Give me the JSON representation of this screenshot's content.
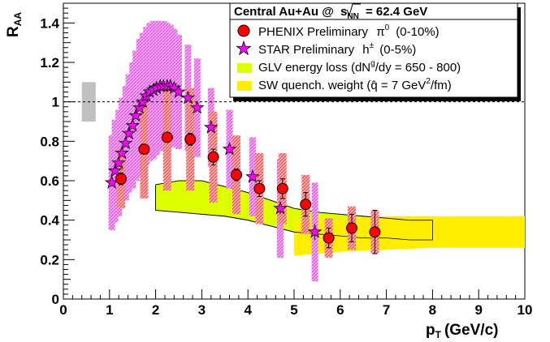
{
  "chart_data": {
    "type": "scatter",
    "xlabel": "p",
    "xlabel_sub": "T",
    "xlabel_unit": "(GeV/c)",
    "ylabel": "R",
    "ylabel_sub": "AA",
    "xlim": [
      0,
      10
    ],
    "ylim": [
      0,
      1.5
    ],
    "x_ticks": [
      0,
      1,
      2,
      3,
      4,
      5,
      6,
      7,
      8,
      9,
      10
    ],
    "y_ticks": [
      0,
      0.2,
      0.4,
      0.6,
      0.8,
      1,
      1.2,
      1.4
    ],
    "x_tick_labels": [
      "0",
      "1",
      "2",
      "3",
      "4",
      "5",
      "6",
      "7",
      "8",
      "9",
      "10"
    ],
    "y_tick_labels": [
      "0",
      "0.2",
      "0.4",
      "0.6",
      "0.8",
      "1",
      "1.2",
      "1.4"
    ],
    "reference_line_y": 1,
    "normalization_box": {
      "x": [
        0.4,
        0.7
      ],
      "y": [
        0.9,
        1.1
      ]
    },
    "legend": {
      "title_pre": "Central Au+Au @",
      "title_s": "s",
      "title_sub": "NN",
      "title_post": "= 62.4 GeV",
      "entries": [
        {
          "pre": "PHENIX Preliminary",
          "sym": "π",
          "sup": "0",
          "post": "(0-10%)"
        },
        {
          "pre": "STAR Preliminary",
          "sym": "h",
          "sup": "±",
          "post": "(0-5%)"
        },
        {
          "pre": "GLV energy loss (dN",
          "sup": "g",
          "post": "/dy = 650 - 800)"
        },
        {
          "pre": "SW quench. weight (",
          "sym": "q̂",
          "post": " = 7 GeV",
          "sup2": "2",
          "post2": "/fm)"
        }
      ]
    },
    "series": [
      {
        "name": "PHENIX Preliminary π0 (0-10%)",
        "color": "#ff0000",
        "marker": "circle",
        "points": [
          {
            "x": 1.25,
            "y": 0.61,
            "err": 0.03,
            "sys": 0.15
          },
          {
            "x": 1.75,
            "y": 0.76,
            "err": 0.02,
            "sys": 0.25
          },
          {
            "x": 2.25,
            "y": 0.82,
            "err": 0.02,
            "sys": 0.27
          },
          {
            "x": 2.75,
            "y": 0.81,
            "err": 0.03,
            "sys": 0.26
          },
          {
            "x": 3.25,
            "y": 0.72,
            "err": 0.04,
            "sys": 0.23
          },
          {
            "x": 3.75,
            "y": 0.63,
            "err": 0.03,
            "sys": 0.2
          },
          {
            "x": 4.25,
            "y": 0.56,
            "err": 0.04,
            "sys": 0.18
          },
          {
            "x": 4.75,
            "y": 0.56,
            "err": 0.05,
            "sys": 0.18
          },
          {
            "x": 5.25,
            "y": 0.48,
            "err": 0.06,
            "sys": 0.15
          },
          {
            "x": 5.75,
            "y": 0.31,
            "err": 0.05,
            "sys": 0.1
          },
          {
            "x": 6.25,
            "y": 0.36,
            "err": 0.07,
            "sys": 0.11
          },
          {
            "x": 6.75,
            "y": 0.34,
            "err": 0.11,
            "sys": 0.11
          }
        ]
      },
      {
        "name": "STAR Preliminary h± (0-5%)",
        "color": "#ff00ff",
        "marker": "star",
        "points": [
          {
            "x": 1.05,
            "y": 0.59,
            "err": 0.01,
            "sys": 0.24
          },
          {
            "x": 1.12,
            "y": 0.65,
            "err": 0.01,
            "sys": 0.26
          },
          {
            "x": 1.2,
            "y": 0.69,
            "err": 0.01,
            "sys": 0.27
          },
          {
            "x": 1.27,
            "y": 0.74,
            "err": 0.01,
            "sys": 0.28
          },
          {
            "x": 1.35,
            "y": 0.79,
            "err": 0.01,
            "sys": 0.29
          },
          {
            "x": 1.42,
            "y": 0.84,
            "err": 0.01,
            "sys": 0.3
          },
          {
            "x": 1.5,
            "y": 0.88,
            "err": 0.01,
            "sys": 0.32
          },
          {
            "x": 1.57,
            "y": 0.93,
            "err": 0.01,
            "sys": 0.33
          },
          {
            "x": 1.65,
            "y": 0.97,
            "err": 0.01,
            "sys": 0.35
          },
          {
            "x": 1.72,
            "y": 1.0,
            "err": 0.01,
            "sys": 0.35
          },
          {
            "x": 1.8,
            "y": 1.03,
            "err": 0.01,
            "sys": 0.35
          },
          {
            "x": 1.87,
            "y": 1.05,
            "err": 0.01,
            "sys": 0.35
          },
          {
            "x": 1.95,
            "y": 1.06,
            "err": 0.01,
            "sys": 0.35
          },
          {
            "x": 2.02,
            "y": 1.07,
            "err": 0.01,
            "sys": 0.34
          },
          {
            "x": 2.1,
            "y": 1.08,
            "err": 0.01,
            "sys": 0.33
          },
          {
            "x": 2.17,
            "y": 1.08,
            "err": 0.01,
            "sys": 0.33
          },
          {
            "x": 2.25,
            "y": 1.08,
            "err": 0.01,
            "sys": 0.32
          },
          {
            "x": 2.32,
            "y": 1.08,
            "err": 0.01,
            "sys": 0.31
          },
          {
            "x": 2.4,
            "y": 1.07,
            "err": 0.01,
            "sys": 0.3
          },
          {
            "x": 2.5,
            "y": 1.05,
            "err": 0.01,
            "sys": 0.29
          },
          {
            "x": 2.7,
            "y": 1.02,
            "err": 0.01,
            "sys": 0.27
          },
          {
            "x": 2.9,
            "y": 0.97,
            "err": 0.01,
            "sys": 0.25
          },
          {
            "x": 3.2,
            "y": 0.87,
            "err": 0.01,
            "sys": 0.2
          },
          {
            "x": 3.6,
            "y": 0.76,
            "err": 0.02,
            "sys": 0.2
          },
          {
            "x": 4.1,
            "y": 0.62,
            "err": 0.02,
            "sys": 0.2
          },
          {
            "x": 4.7,
            "y": 0.46,
            "err": 0.03,
            "sys": 0.25
          },
          {
            "x": 5.45,
            "y": 0.34,
            "err": 0.04,
            "sys": 0.25
          }
        ]
      }
    ],
    "bands": [
      {
        "name": "GLV energy loss",
        "color": "#ddff00",
        "x": [
          2.0,
          2.5,
          3.0,
          3.5,
          4.0,
          4.5,
          5.0,
          5.5,
          6.0,
          6.5,
          7.0,
          7.5,
          8.0
        ],
        "upper": [
          0.58,
          0.6,
          0.6,
          0.57,
          0.54,
          0.5,
          0.46,
          0.44,
          0.43,
          0.42,
          0.41,
          0.4,
          0.4
        ],
        "lower": [
          0.45,
          0.44,
          0.43,
          0.42,
          0.4,
          0.37,
          0.34,
          0.33,
          0.32,
          0.31,
          0.31,
          0.3,
          0.3
        ]
      },
      {
        "name": "SW quench. weight",
        "color": "#ffee00",
        "x": [
          5.0,
          6.0,
          7.0,
          8.0,
          9.0,
          10.0
        ],
        "upper": [
          0.4,
          0.41,
          0.42,
          0.42,
          0.42,
          0.42
        ],
        "lower": [
          0.22,
          0.24,
          0.25,
          0.26,
          0.26,
          0.26
        ]
      }
    ]
  }
}
